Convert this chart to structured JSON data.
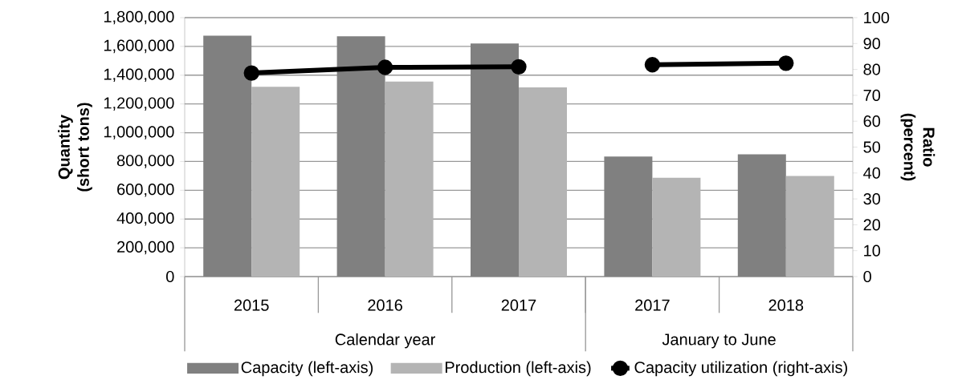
{
  "chart_data": {
    "type": "bar",
    "categories": [
      "2015",
      "2016",
      "2017",
      "2017",
      "2018"
    ],
    "series": [
      {
        "name": "Capacity (left-axis)",
        "color": "#808080",
        "values": [
          1675000,
          1670000,
          1620000,
          835000,
          850000
        ]
      },
      {
        "name": "Production (left-axis)",
        "color": "#b4b4b4",
        "values": [
          1320000,
          1355000,
          1315000,
          687000,
          700000
        ]
      },
      {
        "name": "Capacity utilization (right-axis)",
        "type": "line",
        "axis": "y2",
        "color": "#000000",
        "values": [
          78.6,
          80.8,
          81.0,
          81.8,
          82.4
        ]
      }
    ],
    "ylim": [
      0,
      1800000
    ],
    "yticks": [
      0,
      {
        "value": 200000,
        "label": "200,000"
      },
      {
        "value": 400000,
        "label": "400,000"
      },
      {
        "value": 600000,
        "label": "600,000"
      },
      {
        "value": 800000,
        "label": "800,000"
      },
      {
        "value": 1000000,
        "label": "1,000,000"
      },
      {
        "value": 1200000,
        "label": "1,200,000"
      },
      {
        "value": 1400000,
        "label": "1,400,000"
      },
      {
        "value": 1600000,
        "label": "1,600,000"
      },
      {
        "value": 1800000,
        "label": "1,800,000"
      }
    ],
    "y2lim": [
      0,
      100
    ],
    "y2ticks": [
      0,
      10,
      20,
      30,
      40,
      50,
      60,
      70,
      80,
      90,
      100
    ],
    "ylabel": "Quantity (short tons)",
    "y2label": "Ratio (percent)",
    "annotations": [
      "Calendar year",
      "January to June"
    ],
    "grid": "y",
    "legend": "bottom",
    "marker": "circle"
  }
}
